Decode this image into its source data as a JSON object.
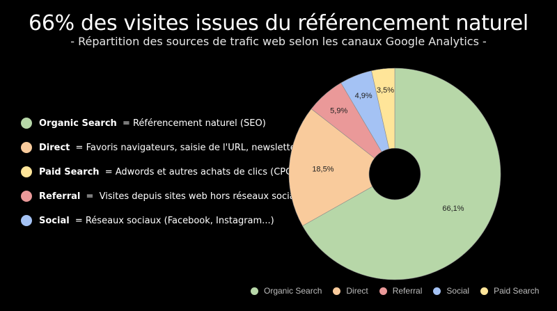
{
  "title": "66% des visites issues du référencement naturel",
  "subtitle": "- Répartition des sources de trafic web selon les canaux Google Analytics -",
  "legend_left": [
    {
      "name": "Organic Search",
      "sep": " = ",
      "desc": "Référencement naturel (SEO)",
      "color": "#b7d7a8"
    },
    {
      "name": "Direct",
      "sep": " = ",
      "desc": "Favoris navigateurs, saisie de l'URL, newsletters",
      "color": "#f9cb9c"
    },
    {
      "name": "Paid Search",
      "sep": " = ",
      "desc": "Adwords et autres achats de clics (CPC)",
      "color": "#ffe599"
    },
    {
      "name": "Referral",
      "sep": " =  ",
      "desc": "Visites depuis sites web hors réseaux sociaux",
      "color": "#ea9999"
    },
    {
      "name": "Social",
      "sep": " = ",
      "desc": "Réseaux sociaux (Facebook, Instagram...)",
      "color": "#a4c2f4"
    }
  ],
  "chart_data": {
    "type": "pie",
    "donut": true,
    "series": [
      {
        "name": "Organic Search",
        "value": 66.1,
        "label": "66,1%",
        "color": "#b7d7a8"
      },
      {
        "name": "Direct",
        "value": 18.5,
        "label": "18,5%",
        "color": "#f9cb9c"
      },
      {
        "name": "Referral",
        "value": 5.9,
        "label": "5,9%",
        "color": "#ea9999"
      },
      {
        "name": "Social",
        "value": 4.9,
        "label": "4,9%",
        "color": "#a4c2f4"
      },
      {
        "name": "Paid Search",
        "value": 3.5,
        "label": "3,5%",
        "color": "#ffe599"
      }
    ],
    "legend_position": "bottom-right"
  }
}
